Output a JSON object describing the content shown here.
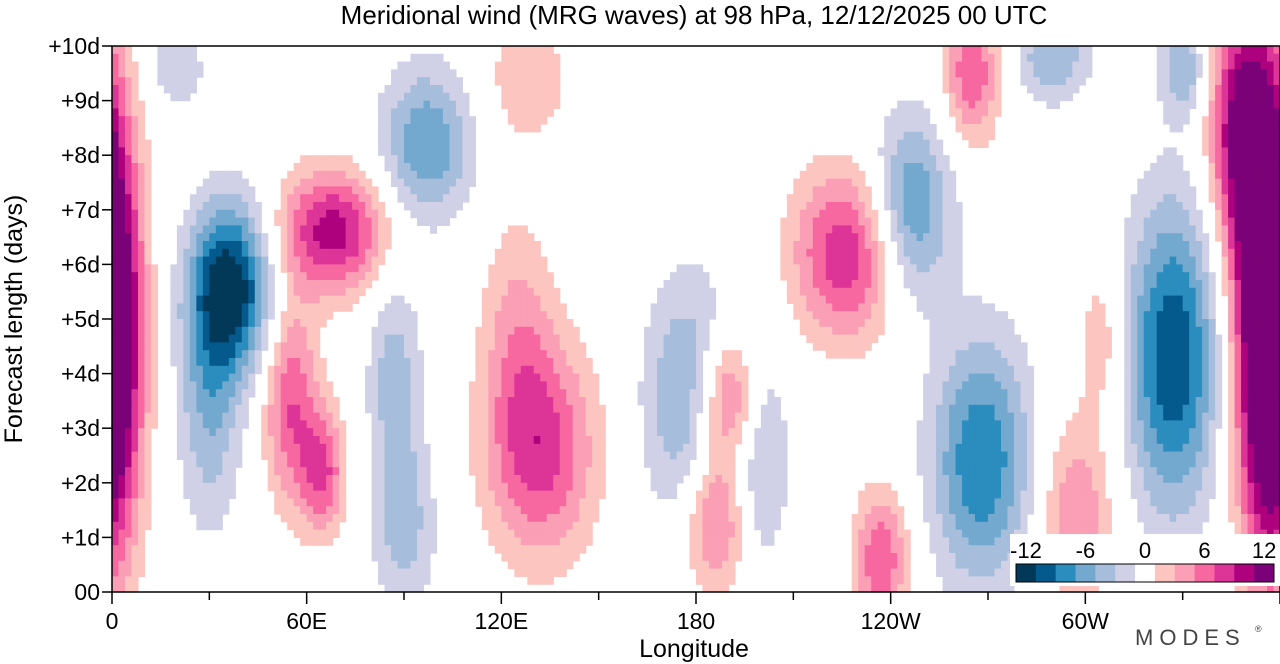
{
  "chart_data": {
    "type": "heatmap",
    "title": "Meridional wind (MRG waves) at  98 hPa,  12/12/2025  00 UTC",
    "xlabel": "Longitude",
    "ylabel": "Forecast length (days)",
    "x_ticks": [
      "0",
      "60E",
      "120E",
      "180",
      "120W",
      "60W"
    ],
    "x_tick_values": [
      0,
      60,
      120,
      180,
      240,
      300
    ],
    "xlim": [
      0,
      360
    ],
    "y_ticks": [
      "00",
      "+1d",
      "+2d",
      "+3d",
      "+4d",
      "+5d",
      "+6d",
      "+7d",
      "+8d",
      "+9d",
      "+10d"
    ],
    "ylim": [
      0,
      10
    ],
    "colorbar": {
      "labels": [
        "-12",
        "-6",
        "0",
        "6",
        "12"
      ],
      "levels": [
        -14,
        -12,
        -10,
        -8,
        -6,
        -4,
        -2,
        2,
        4,
        6,
        8,
        10,
        12,
        14
      ],
      "colors": [
        "#023858",
        "#045a8d",
        "#2b8cbe",
        "#74a9cf",
        "#a6bddb",
        "#d0d1e6",
        "#ffffff",
        "#fcc5c0",
        "#fa9fb5",
        "#f768a1",
        "#dd3497",
        "#ae017e",
        "#7a0177"
      ]
    },
    "anomalies": [
      {
        "lon": 0,
        "day": 4.6,
        "value": 13,
        "sigma_lon": 7,
        "sigma_day": 2.6
      },
      {
        "lon": 355,
        "day": 5.2,
        "value": 13,
        "sigma_lon": 7,
        "sigma_day": 3.2
      },
      {
        "lon": 348,
        "day": 8.5,
        "value": 11,
        "sigma_lon": 7,
        "sigma_day": 1.6
      },
      {
        "lon": 37,
        "day": 5.6,
        "value": -13,
        "sigma_lon": 9,
        "sigma_day": 1.1
      },
      {
        "lon": 30,
        "day": 3.6,
        "value": -6,
        "sigma_lon": 7,
        "sigma_day": 1.7
      },
      {
        "lon": 20,
        "day": 9.6,
        "value": -4,
        "sigma_lon": 6,
        "sigma_day": 0.5
      },
      {
        "lon": 68,
        "day": 6.6,
        "value": 11,
        "sigma_lon": 12,
        "sigma_day": 0.8
      },
      {
        "lon": 55,
        "day": 3.5,
        "value": 8,
        "sigma_lon": 6,
        "sigma_day": 1.3
      },
      {
        "lon": 65,
        "day": 2.2,
        "value": 8,
        "sigma_lon": 5,
        "sigma_day": 0.8
      },
      {
        "lon": 97,
        "day": 8.2,
        "value": -8,
        "sigma_lon": 10,
        "sigma_day": 1.0
      },
      {
        "lon": 87,
        "day": 4.0,
        "value": -5,
        "sigma_lon": 6,
        "sigma_day": 1.3
      },
      {
        "lon": 90,
        "day": 1.2,
        "value": -5,
        "sigma_lon": 7,
        "sigma_day": 1.2
      },
      {
        "lon": 132,
        "day": 2.6,
        "value": 9,
        "sigma_lon": 12,
        "sigma_day": 1.4
      },
      {
        "lon": 125,
        "day": 4.9,
        "value": 4,
        "sigma_lon": 8,
        "sigma_day": 1.5
      },
      {
        "lon": 128,
        "day": 9.4,
        "value": 4,
        "sigma_lon": 9,
        "sigma_day": 0.8
      },
      {
        "lon": 178,
        "day": 3.5,
        "value": -7,
        "sigma_lon": 10,
        "sigma_day": 1.6
      },
      {
        "lon": 190,
        "day": 3.6,
        "value": 9,
        "sigma_lon": 7,
        "sigma_day": 0.8
      },
      {
        "lon": 186,
        "day": 1.4,
        "value": 8,
        "sigma_lon": 7,
        "sigma_day": 1.0
      },
      {
        "lon": 200,
        "day": 2.6,
        "value": -5,
        "sigma_lon": 6,
        "sigma_day": 1.5
      },
      {
        "lon": 227,
        "day": 6.2,
        "value": 10,
        "sigma_lon": 12,
        "sigma_day": 1.1
      },
      {
        "lon": 237,
        "day": 0.6,
        "value": 8,
        "sigma_lon": 6,
        "sigma_day": 0.9
      },
      {
        "lon": 246,
        "day": 7.0,
        "value": -9,
        "sigma_lon": 9,
        "sigma_day": 1.2
      },
      {
        "lon": 268,
        "day": 2.4,
        "value": -10,
        "sigma_lon": 11,
        "sigma_day": 1.6
      },
      {
        "lon": 265,
        "day": 9.5,
        "value": 8,
        "sigma_lon": 6,
        "sigma_day": 0.9
      },
      {
        "lon": 290,
        "day": 9.8,
        "value": -6,
        "sigma_lon": 8,
        "sigma_day": 0.6
      },
      {
        "lon": 327,
        "day": 4.3,
        "value": -12,
        "sigma_lon": 10,
        "sigma_day": 2.0
      },
      {
        "lon": 297,
        "day": 1.5,
        "value": 6,
        "sigma_lon": 8,
        "sigma_day": 1.2
      },
      {
        "lon": 305,
        "day": 4.6,
        "value": 4,
        "sigma_lon": 5,
        "sigma_day": 0.9
      },
      {
        "lon": 330,
        "day": 9.6,
        "value": -6,
        "sigma_lon": 5,
        "sigma_day": 0.6
      }
    ]
  },
  "brand": "MODES",
  "brand_mark": "®"
}
